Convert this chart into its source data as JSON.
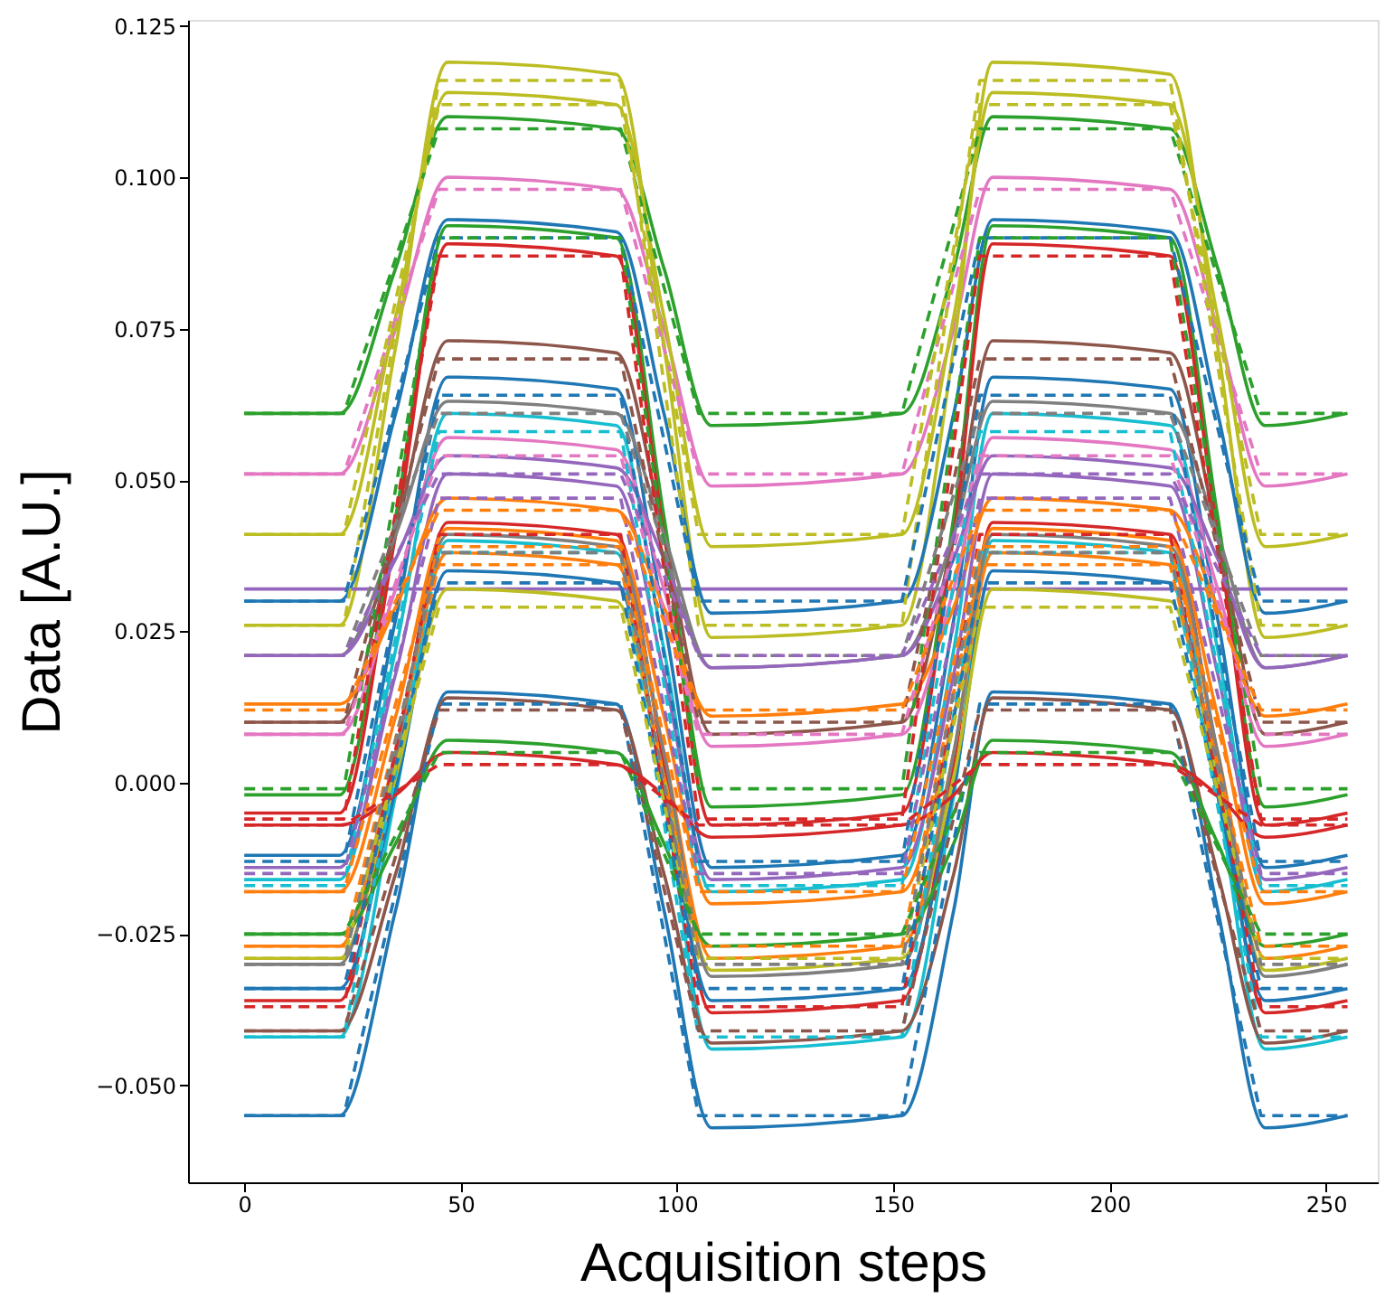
{
  "chart_data": {
    "type": "line",
    "xlabel": "Acquisition steps",
    "ylabel": "Data [A.U.]",
    "xlim": [
      -13,
      262
    ],
    "xticks": [
      0,
      50,
      100,
      150,
      200,
      250
    ],
    "ylim": [
      -0.066,
      0.126
    ],
    "yticks": [
      {
        "value": -0.05,
        "label": "−0.050"
      },
      {
        "value": -0.025,
        "label": "−0.025"
      },
      {
        "value": 0,
        "label": "0.000"
      },
      {
        "value": 0.025,
        "label": "0.025"
      },
      {
        "value": 0.05,
        "label": "0.050"
      },
      {
        "value": 0.075,
        "label": "0.075"
      },
      {
        "value": 0.1,
        "label": "0.100"
      },
      {
        "value": 0.125,
        "label": "0.125"
      }
    ],
    "grid": false,
    "marker": "none",
    "x": [
      0,
      22,
      35,
      47,
      86,
      97,
      108,
      152,
      164,
      173,
      214,
      225,
      236,
      255
    ],
    "series": [
      {
        "color": "#2ca02c",
        "line_style": "solid",
        "values": [
          0.061,
          0.061,
          0.085,
          0.11,
          0.108,
          0.085,
          0.059,
          0.061,
          0.085,
          0.11,
          0.108,
          0.085,
          0.059,
          0.061
        ]
      },
      {
        "color": "#e377c2",
        "line_style": "solid",
        "values": [
          0.051,
          0.051,
          0.075,
          0.1,
          0.098,
          0.075,
          0.049,
          0.051,
          0.075,
          0.1,
          0.098,
          0.075,
          0.049,
          0.051
        ]
      },
      {
        "color": "#bcbd22",
        "line_style": "solid",
        "values": [
          0.041,
          0.041,
          0.077,
          0.114,
          0.112,
          0.077,
          0.039,
          0.041,
          0.077,
          0.114,
          0.112,
          0.077,
          0.039,
          0.041
        ]
      },
      {
        "color": "#bcbd22",
        "line_style": "solid",
        "values": [
          0.026,
          0.026,
          0.072,
          0.119,
          0.117,
          0.072,
          0.024,
          0.026,
          0.072,
          0.119,
          0.117,
          0.072,
          0.024,
          0.026
        ]
      },
      {
        "color": "#9467bd",
        "line_style": "solid",
        "x": [
          0,
          255
        ],
        "values": [
          0.032,
          0.032
        ]
      },
      {
        "color": "#1f77b4",
        "line_style": "solid",
        "values": [
          0.03,
          0.03,
          0.061,
          0.093,
          0.091,
          0.061,
          0.028,
          0.03,
          0.061,
          0.093,
          0.091,
          0.061,
          0.028,
          0.03
        ]
      },
      {
        "color": "#2ca02c",
        "line_style": "solid",
        "values": [
          -0.002,
          -0.002,
          0.044,
          0.092,
          0.09,
          0.044,
          -0.004,
          -0.002,
          0.044,
          0.092,
          0.09,
          0.044,
          -0.004,
          -0.002
        ]
      },
      {
        "color": "#d62728",
        "line_style": "solid",
        "values": [
          -0.005,
          -0.005,
          0.041,
          0.089,
          0.087,
          0.041,
          -0.007,
          -0.005,
          0.041,
          0.089,
          0.087,
          0.041,
          -0.007,
          -0.005
        ]
      },
      {
        "color": "#8c564b",
        "line_style": "solid",
        "values": [
          0.01,
          0.01,
          0.041,
          0.073,
          0.071,
          0.041,
          0.008,
          0.01,
          0.041,
          0.073,
          0.071,
          0.041,
          0.008,
          0.01
        ]
      },
      {
        "color": "#1f77b4",
        "line_style": "solid",
        "values": [
          -0.012,
          -0.012,
          0.027,
          0.067,
          0.065,
          0.027,
          -0.014,
          -0.012,
          0.027,
          0.067,
          0.065,
          0.027,
          -0.014,
          -0.012
        ]
      },
      {
        "color": "#7f7f7f",
        "line_style": "solid",
        "values": [
          0.021,
          0.021,
          0.041,
          0.063,
          0.061,
          0.041,
          0.019,
          0.021,
          0.041,
          0.063,
          0.061,
          0.041,
          0.019,
          0.021
        ]
      },
      {
        "color": "#17becf",
        "line_style": "solid",
        "values": [
          -0.016,
          -0.016,
          0.022,
          0.061,
          0.059,
          0.022,
          -0.018,
          -0.016,
          0.022,
          0.061,
          0.059,
          0.022,
          -0.018,
          -0.016
        ]
      },
      {
        "color": "#e377c2",
        "line_style": "solid",
        "values": [
          0.008,
          0.008,
          0.032,
          0.057,
          0.055,
          0.032,
          0.006,
          0.008,
          0.032,
          0.057,
          0.055,
          0.032,
          0.006,
          0.008
        ]
      },
      {
        "color": "#9467bd",
        "line_style": "solid",
        "values": [
          0.021,
          0.021,
          0.037,
          0.054,
          0.052,
          0.037,
          0.019,
          0.021,
          0.037,
          0.054,
          0.052,
          0.037,
          0.019,
          0.021
        ]
      },
      {
        "color": "#9467bd",
        "line_style": "solid",
        "values": [
          -0.014,
          -0.014,
          0.018,
          0.051,
          0.049,
          0.018,
          -0.016,
          -0.014,
          0.018,
          0.051,
          0.049,
          0.018,
          -0.016,
          -0.014
        ]
      },
      {
        "color": "#ff7f0e",
        "line_style": "solid",
        "values": [
          0.013,
          0.013,
          0.029,
          0.047,
          0.045,
          0.029,
          0.011,
          0.013,
          0.029,
          0.047,
          0.045,
          0.029,
          0.011,
          0.013
        ]
      },
      {
        "color": "#d62728",
        "line_style": "solid",
        "values": [
          -0.036,
          -0.036,
          0.003,
          0.043,
          0.041,
          0.003,
          -0.038,
          -0.036,
          0.003,
          0.043,
          0.041,
          0.003,
          -0.038,
          -0.036
        ]
      },
      {
        "color": "#ff7f0e",
        "line_style": "solid",
        "values": [
          -0.018,
          -0.018,
          0.011,
          0.042,
          0.04,
          0.011,
          -0.02,
          -0.018,
          0.011,
          0.042,
          0.04,
          0.011,
          -0.02,
          -0.018
        ]
      },
      {
        "color": "#17becf",
        "line_style": "solid",
        "values": [
          -0.042,
          -0.042,
          -0.002,
          0.04,
          0.038,
          -0.002,
          -0.044,
          -0.042,
          -0.002,
          0.04,
          0.038,
          -0.002,
          -0.044,
          -0.042
        ]
      },
      {
        "color": "#ff7f0e",
        "line_style": "solid",
        "values": [
          -0.027,
          -0.027,
          0.005,
          0.038,
          0.036,
          0.005,
          -0.029,
          -0.027,
          0.005,
          0.038,
          0.036,
          0.005,
          -0.029,
          -0.027
        ]
      },
      {
        "color": "#1f77b4",
        "line_style": "solid",
        "values": [
          -0.034,
          -0.034,
          -0.001,
          0.035,
          0.033,
          -0.001,
          -0.036,
          -0.034,
          -0.001,
          0.035,
          0.033,
          -0.001,
          -0.036,
          -0.034
        ]
      },
      {
        "color": "#bcbd22",
        "line_style": "solid",
        "values": [
          -0.029,
          -0.029,
          0.001,
          0.032,
          0.03,
          0.001,
          -0.031,
          -0.029,
          0.001,
          0.032,
          0.03,
          0.001,
          -0.031,
          -0.029
        ]
      },
      {
        "color": "#7f7f7f",
        "line_style": "solid",
        "values": [
          -0.03,
          -0.03,
          0.005,
          0.041,
          0.039,
          0.005,
          -0.032,
          -0.03,
          0.005,
          0.041,
          0.039,
          0.005,
          -0.032,
          -0.03
        ]
      },
      {
        "color": "#1f77b4",
        "line_style": "solid",
        "values": [
          -0.055,
          -0.055,
          -0.021,
          0.015,
          0.013,
          -0.021,
          -0.057,
          -0.055,
          -0.021,
          0.015,
          0.013,
          -0.021,
          -0.057,
          -0.055
        ]
      },
      {
        "color": "#8c564b",
        "line_style": "solid",
        "values": [
          -0.041,
          -0.041,
          -0.015,
          0.014,
          0.012,
          -0.015,
          -0.043,
          -0.041,
          -0.015,
          0.014,
          0.012,
          -0.015,
          -0.043,
          -0.041
        ]
      },
      {
        "color": "#2ca02c",
        "line_style": "solid",
        "values": [
          -0.025,
          -0.025,
          -0.01,
          0.007,
          0.005,
          -0.01,
          -0.027,
          -0.025,
          -0.01,
          0.007,
          0.005,
          -0.01,
          -0.027,
          -0.025
        ]
      },
      {
        "color": "#d62728",
        "line_style": "solid",
        "values": [
          -0.007,
          -0.007,
          -0.002,
          0.005,
          0.003,
          -0.002,
          -0.009,
          -0.007,
          -0.002,
          0.005,
          0.003,
          -0.002,
          -0.009,
          -0.007
        ]
      },
      {
        "color": "#2ca02c",
        "line_style": "dashed",
        "x": [
          0,
          23,
          45,
          87,
          105,
          152,
          170,
          214,
          235,
          255
        ],
        "values": [
          0.061,
          0.061,
          0.108,
          0.108,
          0.061,
          0.061,
          0.108,
          0.108,
          0.061,
          0.061
        ]
      },
      {
        "color": "#e377c2",
        "line_style": "dashed",
        "x": [
          0,
          23,
          45,
          87,
          105,
          152,
          170,
          214,
          235,
          255
        ],
        "values": [
          0.051,
          0.051,
          0.098,
          0.098,
          0.051,
          0.051,
          0.098,
          0.098,
          0.051,
          0.051
        ]
      },
      {
        "color": "#bcbd22",
        "line_style": "dashed",
        "x": [
          0,
          23,
          45,
          87,
          105,
          152,
          170,
          214,
          235,
          255
        ],
        "values": [
          0.041,
          0.041,
          0.112,
          0.112,
          0.041,
          0.041,
          0.112,
          0.112,
          0.041,
          0.041
        ]
      },
      {
        "color": "#bcbd22",
        "line_style": "dashed",
        "x": [
          0,
          23,
          45,
          87,
          105,
          152,
          170,
          214,
          235,
          255
        ],
        "values": [
          0.026,
          0.026,
          0.116,
          0.116,
          0.026,
          0.026,
          0.116,
          0.116,
          0.026,
          0.026
        ]
      },
      {
        "color": "#1f77b4",
        "line_style": "dashed",
        "x": [
          0,
          23,
          45,
          87,
          105,
          152,
          170,
          214,
          235,
          255
        ],
        "values": [
          0.03,
          0.03,
          0.09,
          0.09,
          0.03,
          0.03,
          0.09,
          0.09,
          0.03,
          0.03
        ]
      },
      {
        "color": "#2ca02c",
        "line_style": "dashed",
        "x": [
          0,
          23,
          45,
          87,
          105,
          152,
          170,
          214,
          235,
          255
        ],
        "values": [
          -0.001,
          -0.001,
          0.09,
          0.09,
          -0.001,
          -0.001,
          0.09,
          0.09,
          -0.001,
          -0.001
        ]
      },
      {
        "color": "#d62728",
        "line_style": "dashed",
        "x": [
          0,
          23,
          45,
          87,
          105,
          152,
          170,
          214,
          235,
          255
        ],
        "values": [
          -0.006,
          -0.006,
          0.087,
          0.087,
          -0.006,
          -0.006,
          0.087,
          0.087,
          -0.006,
          -0.006
        ]
      },
      {
        "color": "#8c564b",
        "line_style": "dashed",
        "x": [
          0,
          23,
          45,
          87,
          105,
          152,
          170,
          214,
          235,
          255
        ],
        "values": [
          0.01,
          0.01,
          0.07,
          0.07,
          0.01,
          0.01,
          0.07,
          0.07,
          0.01,
          0.01
        ]
      },
      {
        "color": "#1f77b4",
        "line_style": "dashed",
        "x": [
          0,
          23,
          45,
          87,
          105,
          152,
          170,
          214,
          235,
          255
        ],
        "values": [
          -0.013,
          -0.013,
          0.064,
          0.064,
          -0.013,
          -0.013,
          0.064,
          0.064,
          -0.013,
          -0.013
        ]
      },
      {
        "color": "#7f7f7f",
        "line_style": "dashed",
        "x": [
          0,
          23,
          45,
          87,
          105,
          152,
          170,
          214,
          235,
          255
        ],
        "values": [
          0.021,
          0.021,
          0.061,
          0.061,
          0.021,
          0.021,
          0.061,
          0.061,
          0.021,
          0.021
        ]
      },
      {
        "color": "#17becf",
        "line_style": "dashed",
        "x": [
          0,
          23,
          45,
          87,
          105,
          152,
          170,
          214,
          235,
          255
        ],
        "values": [
          -0.017,
          -0.017,
          0.058,
          0.058,
          -0.017,
          -0.017,
          0.058,
          0.058,
          -0.017,
          -0.017
        ]
      },
      {
        "color": "#e377c2",
        "line_style": "dashed",
        "x": [
          0,
          23,
          45,
          87,
          105,
          152,
          170,
          214,
          235,
          255
        ],
        "values": [
          0.008,
          0.008,
          0.054,
          0.054,
          0.008,
          0.008,
          0.054,
          0.054,
          0.008,
          0.008
        ]
      },
      {
        "color": "#9467bd",
        "line_style": "dashed",
        "x": [
          0,
          23,
          45,
          87,
          105,
          152,
          170,
          214,
          235,
          255
        ],
        "values": [
          0.021,
          0.021,
          0.051,
          0.051,
          0.021,
          0.021,
          0.051,
          0.051,
          0.021,
          0.021
        ]
      },
      {
        "color": "#9467bd",
        "line_style": "dashed",
        "x": [
          0,
          23,
          45,
          87,
          105,
          152,
          170,
          214,
          235,
          255
        ],
        "values": [
          -0.015,
          -0.015,
          0.047,
          0.047,
          -0.015,
          -0.015,
          0.047,
          0.047,
          -0.015,
          -0.015
        ]
      },
      {
        "color": "#ff7f0e",
        "line_style": "dashed",
        "x": [
          0,
          23,
          45,
          87,
          105,
          152,
          170,
          214,
          235,
          255
        ],
        "values": [
          0.012,
          0.012,
          0.045,
          0.045,
          0.012,
          0.012,
          0.045,
          0.045,
          0.012,
          0.012
        ]
      },
      {
        "color": "#d62728",
        "line_style": "dashed",
        "x": [
          0,
          23,
          45,
          87,
          105,
          152,
          170,
          214,
          235,
          255
        ],
        "values": [
          -0.037,
          -0.037,
          0.041,
          0.041,
          -0.037,
          -0.037,
          0.041,
          0.041,
          -0.037,
          -0.037
        ]
      },
      {
        "color": "#ff7f0e",
        "line_style": "dashed",
        "x": [
          0,
          23,
          45,
          87,
          105,
          152,
          170,
          214,
          235,
          255
        ],
        "values": [
          -0.018,
          -0.018,
          0.039,
          0.039,
          -0.018,
          -0.018,
          0.039,
          0.039,
          -0.018,
          -0.018
        ]
      },
      {
        "color": "#17becf",
        "line_style": "dashed",
        "x": [
          0,
          23,
          45,
          87,
          105,
          152,
          170,
          214,
          235,
          255
        ],
        "values": [
          -0.042,
          -0.042,
          0.038,
          0.038,
          -0.042,
          -0.042,
          0.038,
          0.038,
          -0.042,
          -0.042
        ]
      },
      {
        "color": "#ff7f0e",
        "line_style": "dashed",
        "x": [
          0,
          23,
          45,
          87,
          105,
          152,
          170,
          214,
          235,
          255
        ],
        "values": [
          -0.027,
          -0.027,
          0.036,
          0.036,
          -0.027,
          -0.027,
          0.036,
          0.036,
          -0.027,
          -0.027
        ]
      },
      {
        "color": "#1f77b4",
        "line_style": "dashed",
        "x": [
          0,
          23,
          45,
          87,
          105,
          152,
          170,
          214,
          235,
          255
        ],
        "values": [
          -0.034,
          -0.034,
          0.033,
          0.033,
          -0.034,
          -0.034,
          0.033,
          0.033,
          -0.034,
          -0.034
        ]
      },
      {
        "color": "#bcbd22",
        "line_style": "dashed",
        "x": [
          0,
          23,
          45,
          87,
          105,
          152,
          170,
          214,
          235,
          255
        ],
        "values": [
          -0.029,
          -0.029,
          0.029,
          0.029,
          -0.029,
          -0.029,
          0.029,
          0.029,
          -0.029,
          -0.029
        ]
      },
      {
        "color": "#7f7f7f",
        "line_style": "dashed",
        "x": [
          0,
          23,
          45,
          87,
          105,
          152,
          170,
          214,
          235,
          255
        ],
        "values": [
          -0.03,
          -0.03,
          0.038,
          0.038,
          -0.03,
          -0.03,
          0.038,
          0.038,
          -0.03,
          -0.03
        ]
      },
      {
        "color": "#1f77b4",
        "line_style": "dashed",
        "x": [
          0,
          23,
          45,
          87,
          105,
          152,
          170,
          214,
          235,
          255
        ],
        "values": [
          -0.055,
          -0.055,
          0.013,
          0.013,
          -0.055,
          -0.055,
          0.013,
          0.013,
          -0.055,
          -0.055
        ]
      },
      {
        "color": "#8c564b",
        "line_style": "dashed",
        "x": [
          0,
          23,
          45,
          87,
          105,
          152,
          170,
          214,
          235,
          255
        ],
        "values": [
          -0.041,
          -0.041,
          0.012,
          0.012,
          -0.041,
          -0.041,
          0.012,
          0.012,
          -0.041,
          -0.041
        ]
      },
      {
        "color": "#2ca02c",
        "line_style": "dashed",
        "x": [
          0,
          23,
          45,
          87,
          105,
          152,
          170,
          214,
          235,
          255
        ],
        "values": [
          -0.025,
          -0.025,
          0.005,
          0.005,
          -0.025,
          -0.025,
          0.005,
          0.005,
          -0.025,
          -0.025
        ]
      },
      {
        "color": "#d62728",
        "line_style": "dashed",
        "x": [
          0,
          23,
          45,
          87,
          105,
          152,
          170,
          214,
          235,
          255
        ],
        "values": [
          -0.007,
          -0.007,
          0.003,
          0.003,
          -0.007,
          -0.007,
          0.003,
          0.003,
          -0.007,
          -0.007
        ]
      }
    ]
  }
}
